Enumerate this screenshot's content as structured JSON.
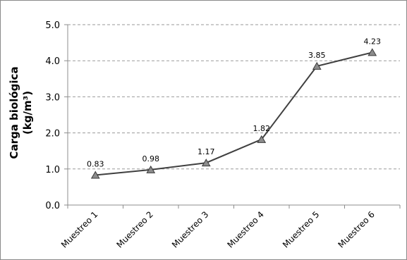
{
  "chart_data": {
    "type": "line",
    "categories": [
      "Muestreo 1",
      "Muestreo 2",
      "Muestreo 3",
      "Muestreo 4",
      "Muestreo 5",
      "Muestreo 6"
    ],
    "series": [
      {
        "values": [
          0.83,
          0.98,
          1.17,
          1.82,
          3.85,
          4.23
        ]
      }
    ],
    "data_labels": [
      "0.83",
      "0.98",
      "1.17",
      "1.82",
      "3.85",
      "4.23"
    ],
    "yticks": [
      "0.0",
      "1.0",
      "2.0",
      "3.0",
      "4.0",
      "5.0"
    ],
    "ylabel_line1": "Carga biológica",
    "ylabel_line2": "(kg/m³)",
    "xlabel": "",
    "title": "",
    "ylim": [
      0,
      5
    ],
    "grid": "horizontal dashed",
    "legend": "none",
    "marker": "triangle",
    "colors": {
      "line": "#404040",
      "marker_fill": "#8c8c8c",
      "marker_stroke": "#3a3a3a",
      "grid": "#9a9a9a",
      "axis": "#8c8c8c"
    }
  }
}
